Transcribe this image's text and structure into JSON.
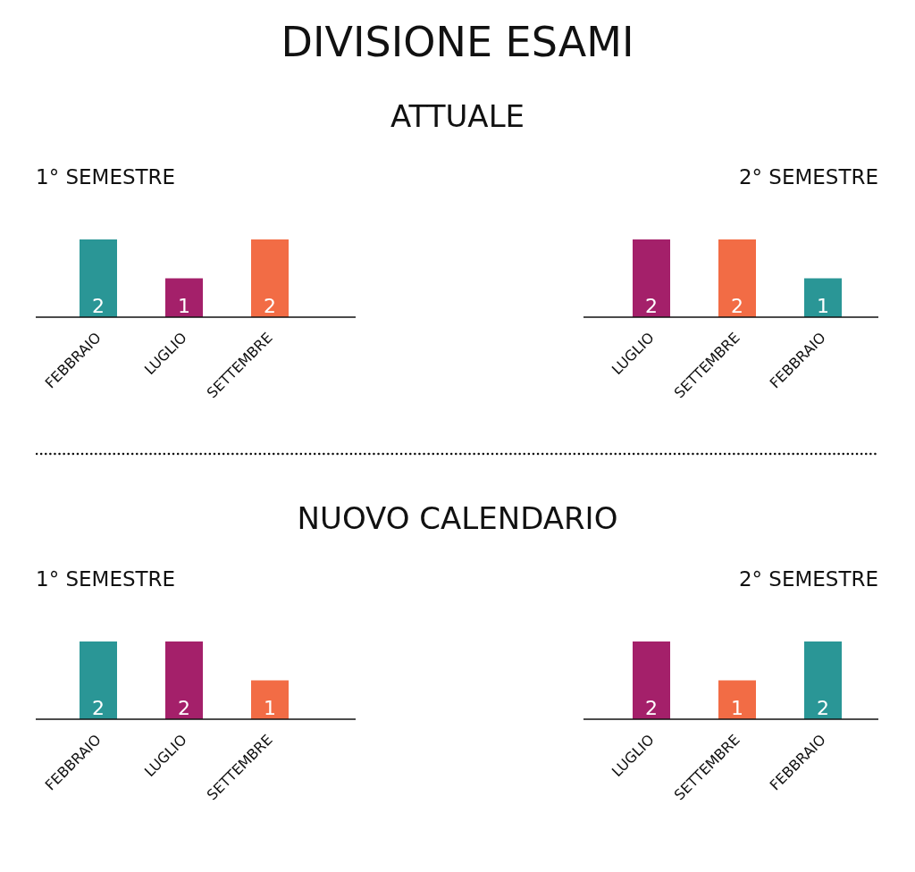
{
  "chart_data": [
    {
      "type": "bar",
      "title": "1° SEMESTRE",
      "annotations": [
        "DIVISIONE ESAMI",
        "ATTUALE"
      ],
      "categories": [
        "FEBBRAIO",
        "LUGLIO",
        "SETTEMBRE"
      ],
      "values": [
        2,
        1,
        2
      ],
      "colors": [
        "#2a9696",
        "#a4206a",
        "#f26c45"
      ],
      "data_labels": true,
      "grid": false,
      "legend": false
    },
    {
      "type": "bar",
      "title": "2° SEMESTRE",
      "categories": [
        "LUGLIO",
        "SETTEMBRE",
        "FEBBRAIO"
      ],
      "values": [
        2,
        2,
        1
      ],
      "colors": [
        "#a4206a",
        "#f26c45",
        "#2a9696"
      ],
      "data_labels": true,
      "grid": false,
      "legend": false
    },
    {
      "type": "bar",
      "title": "1° SEMESTRE",
      "annotations": [
        "NUOVO CALENDARIO"
      ],
      "categories": [
        "FEBBRAIO",
        "LUGLIO",
        "SETTEMBRE"
      ],
      "values": [
        2,
        2,
        1
      ],
      "colors": [
        "#2a9696",
        "#a4206a",
        "#f26c45"
      ],
      "data_labels": true,
      "grid": false,
      "legend": false
    },
    {
      "type": "bar",
      "title": "2° SEMESTRE",
      "categories": [
        "LUGLIO",
        "SETTEMBRE",
        "FEBBRAIO"
      ],
      "values": [
        2,
        1,
        2
      ],
      "colors": [
        "#a4206a",
        "#f26c45",
        "#2a9696"
      ],
      "data_labels": true,
      "grid": false,
      "legend": false
    }
  ]
}
